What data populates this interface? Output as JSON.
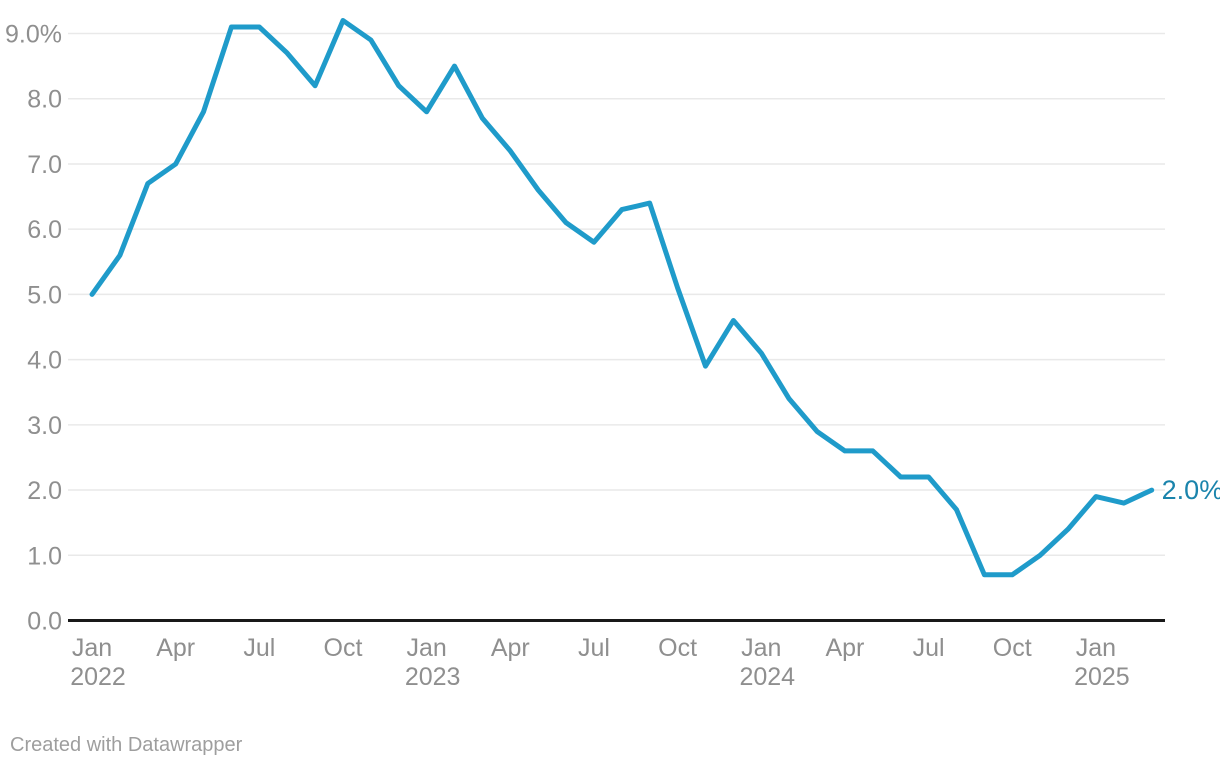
{
  "chart_data": {
    "type": "line",
    "title": "",
    "unit": "%",
    "grid": true,
    "legend_position": "none",
    "end_label": "2.0%",
    "ylim": [
      0,
      9.5
    ],
    "x": [
      "Jan 2022",
      "Feb 2022",
      "Mar 2022",
      "Apr 2022",
      "May 2022",
      "Jun 2022",
      "Jul 2022",
      "Aug 2022",
      "Sep 2022",
      "Oct 2022",
      "Nov 2022",
      "Dec 2022",
      "Jan 2023",
      "Feb 2023",
      "Mar 2023",
      "Apr 2023",
      "May 2023",
      "Jun 2023",
      "Jul 2023",
      "Aug 2023",
      "Sep 2023",
      "Oct 2023",
      "Nov 2023",
      "Dec 2023",
      "Jan 2024",
      "Feb 2024",
      "Mar 2024",
      "Apr 2024",
      "May 2024",
      "Jun 2024",
      "Jul 2024",
      "Aug 2024",
      "Sep 2024",
      "Oct 2024",
      "Nov 2024",
      "Dec 2024",
      "Jan 2025",
      "Feb 2025",
      "Mar 2025"
    ],
    "values": [
      5.0,
      5.6,
      6.7,
      7.0,
      7.8,
      9.1,
      9.1,
      8.7,
      8.2,
      9.2,
      8.9,
      8.2,
      7.8,
      8.5,
      7.7,
      7.2,
      6.6,
      6.1,
      5.8,
      6.3,
      6.4,
      5.1,
      3.9,
      4.6,
      4.1,
      3.4,
      2.9,
      2.6,
      2.6,
      2.2,
      2.2,
      1.7,
      0.7,
      0.7,
      1.0,
      1.4,
      1.9,
      1.8,
      2.0
    ],
    "y_axis": {
      "ticks": [
        {
          "label": "9.0%",
          "value": 9
        },
        {
          "label": "8.0",
          "value": 8
        },
        {
          "label": "7.0",
          "value": 7
        },
        {
          "label": "6.0",
          "value": 6
        },
        {
          "label": "5.0",
          "value": 5
        },
        {
          "label": "4.0",
          "value": 4
        },
        {
          "label": "3.0",
          "value": 3
        },
        {
          "label": "2.0",
          "value": 2
        },
        {
          "label": "1.0",
          "value": 1
        },
        {
          "label": "0.0",
          "value": 0
        }
      ]
    },
    "x_axis": {
      "ticks": [
        {
          "label": "Jan",
          "year": "2022",
          "month_index": 0
        },
        {
          "label": "Apr",
          "year": "",
          "month_index": 3
        },
        {
          "label": "Jul",
          "year": "",
          "month_index": 6
        },
        {
          "label": "Oct",
          "year": "",
          "month_index": 9
        },
        {
          "label": "Jan",
          "year": "2023",
          "month_index": 12
        },
        {
          "label": "Apr",
          "year": "",
          "month_index": 15
        },
        {
          "label": "Jul",
          "year": "",
          "month_index": 18
        },
        {
          "label": "Oct",
          "year": "",
          "month_index": 21
        },
        {
          "label": "Jan",
          "year": "2024",
          "month_index": 24
        },
        {
          "label": "Apr",
          "year": "",
          "month_index": 27
        },
        {
          "label": "Jul",
          "year": "",
          "month_index": 30
        },
        {
          "label": "Oct",
          "year": "",
          "month_index": 33
        },
        {
          "label": "Jan",
          "year": "2025",
          "month_index": 36
        }
      ]
    }
  },
  "colors": {
    "line": "#1f9bca",
    "end_label": "#1a84ac",
    "grid": "#e9e9e9",
    "baseline": "#191919",
    "tick_text": "#8f8f8f",
    "credit_text": "#9e9e9e",
    "background": "#ffffff"
  },
  "footer": {
    "credit": "Created with Datawrapper"
  }
}
